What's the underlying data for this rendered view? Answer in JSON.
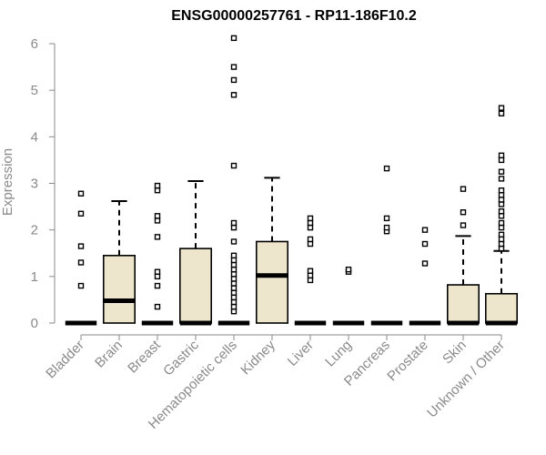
{
  "chart_data": {
    "type": "box",
    "title": "ENSG00000257761 - RP11-186F10.2",
    "ylabel": "Expression",
    "xlabel": "",
    "ylim": [
      0,
      6.2
    ],
    "yticks": [
      0,
      1,
      2,
      3,
      4,
      5,
      6
    ],
    "grid": false,
    "box_fill": "#ede6cc",
    "categories": [
      "Bladder",
      "Brain",
      "Breast",
      "Gastric",
      "Hematopoietic cells",
      "Kidney",
      "Liver",
      "Lung",
      "Pancreas",
      "Prostate",
      "Skin",
      "Unknown / Other"
    ],
    "boxes": [
      {
        "category": "Bladder",
        "q1": 0,
        "median": 0,
        "q3": 0,
        "whisker_low": 0,
        "whisker_high": 0,
        "outliers": [
          0.8,
          1.3,
          1.65,
          2.35,
          2.78
        ]
      },
      {
        "category": "Brain",
        "q1": 0,
        "median": 0.48,
        "q3": 1.45,
        "whisker_low": 0,
        "whisker_high": 2.62,
        "outliers": []
      },
      {
        "category": "Breast",
        "q1": 0,
        "median": 0,
        "q3": 0,
        "whisker_low": 0,
        "whisker_high": 0,
        "outliers": [
          0.35,
          0.8,
          1.0,
          1.1,
          1.85,
          2.2,
          2.3,
          2.85,
          2.95
        ]
      },
      {
        "category": "Gastric",
        "q1": 0,
        "median": 0,
        "q3": 1.6,
        "whisker_low": 0,
        "whisker_high": 3.05,
        "outliers": []
      },
      {
        "category": "Hematopoietic cells",
        "q1": 0,
        "median": 0,
        "q3": 0,
        "whisker_low": 0,
        "whisker_high": 0,
        "outliers": [
          0.25,
          0.35,
          0.45,
          0.55,
          0.65,
          0.75,
          0.85,
          0.95,
          1.05,
          1.15,
          1.25,
          1.35,
          1.45,
          1.75,
          2.05,
          2.15,
          3.38,
          4.9,
          5.22,
          5.5,
          6.12
        ]
      },
      {
        "category": "Kidney",
        "q1": 0,
        "median": 1.02,
        "q3": 1.75,
        "whisker_low": 0,
        "whisker_high": 3.12,
        "outliers": []
      },
      {
        "category": "Liver",
        "q1": 0,
        "median": 0,
        "q3": 0,
        "whisker_low": 0,
        "whisker_high": 0,
        "outliers": [
          0.92,
          1.02,
          1.12,
          1.7,
          1.8,
          2.05,
          2.15,
          2.25
        ]
      },
      {
        "category": "Lung",
        "q1": 0,
        "median": 0,
        "q3": 0,
        "whisker_low": 0,
        "whisker_high": 0,
        "outliers": [
          1.1,
          1.15
        ]
      },
      {
        "category": "Pancreas",
        "q1": 0,
        "median": 0,
        "q3": 0,
        "whisker_low": 0,
        "whisker_high": 0,
        "outliers": [
          1.97,
          2.05,
          2.25,
          3.32
        ]
      },
      {
        "category": "Prostate",
        "q1": 0,
        "median": 0,
        "q3": 0,
        "whisker_low": 0,
        "whisker_high": 0,
        "outliers": [
          1.28,
          1.7,
          2.0
        ]
      },
      {
        "category": "Skin",
        "q1": 0,
        "median": 0,
        "q3": 0.82,
        "whisker_low": 0,
        "whisker_high": 1.87,
        "outliers": [
          2.1,
          2.38,
          2.88
        ]
      },
      {
        "category": "Unknown / Other",
        "q1": 0,
        "median": 0,
        "q3": 0.63,
        "whisker_low": 0,
        "whisker_high": 1.55,
        "outliers": [
          1.6,
          1.7,
          1.8,
          1.9,
          2.05,
          2.15,
          2.3,
          2.4,
          2.55,
          2.65,
          2.75,
          2.85,
          3.1,
          3.25,
          3.5,
          3.6,
          4.5,
          4.62
        ]
      }
    ]
  }
}
